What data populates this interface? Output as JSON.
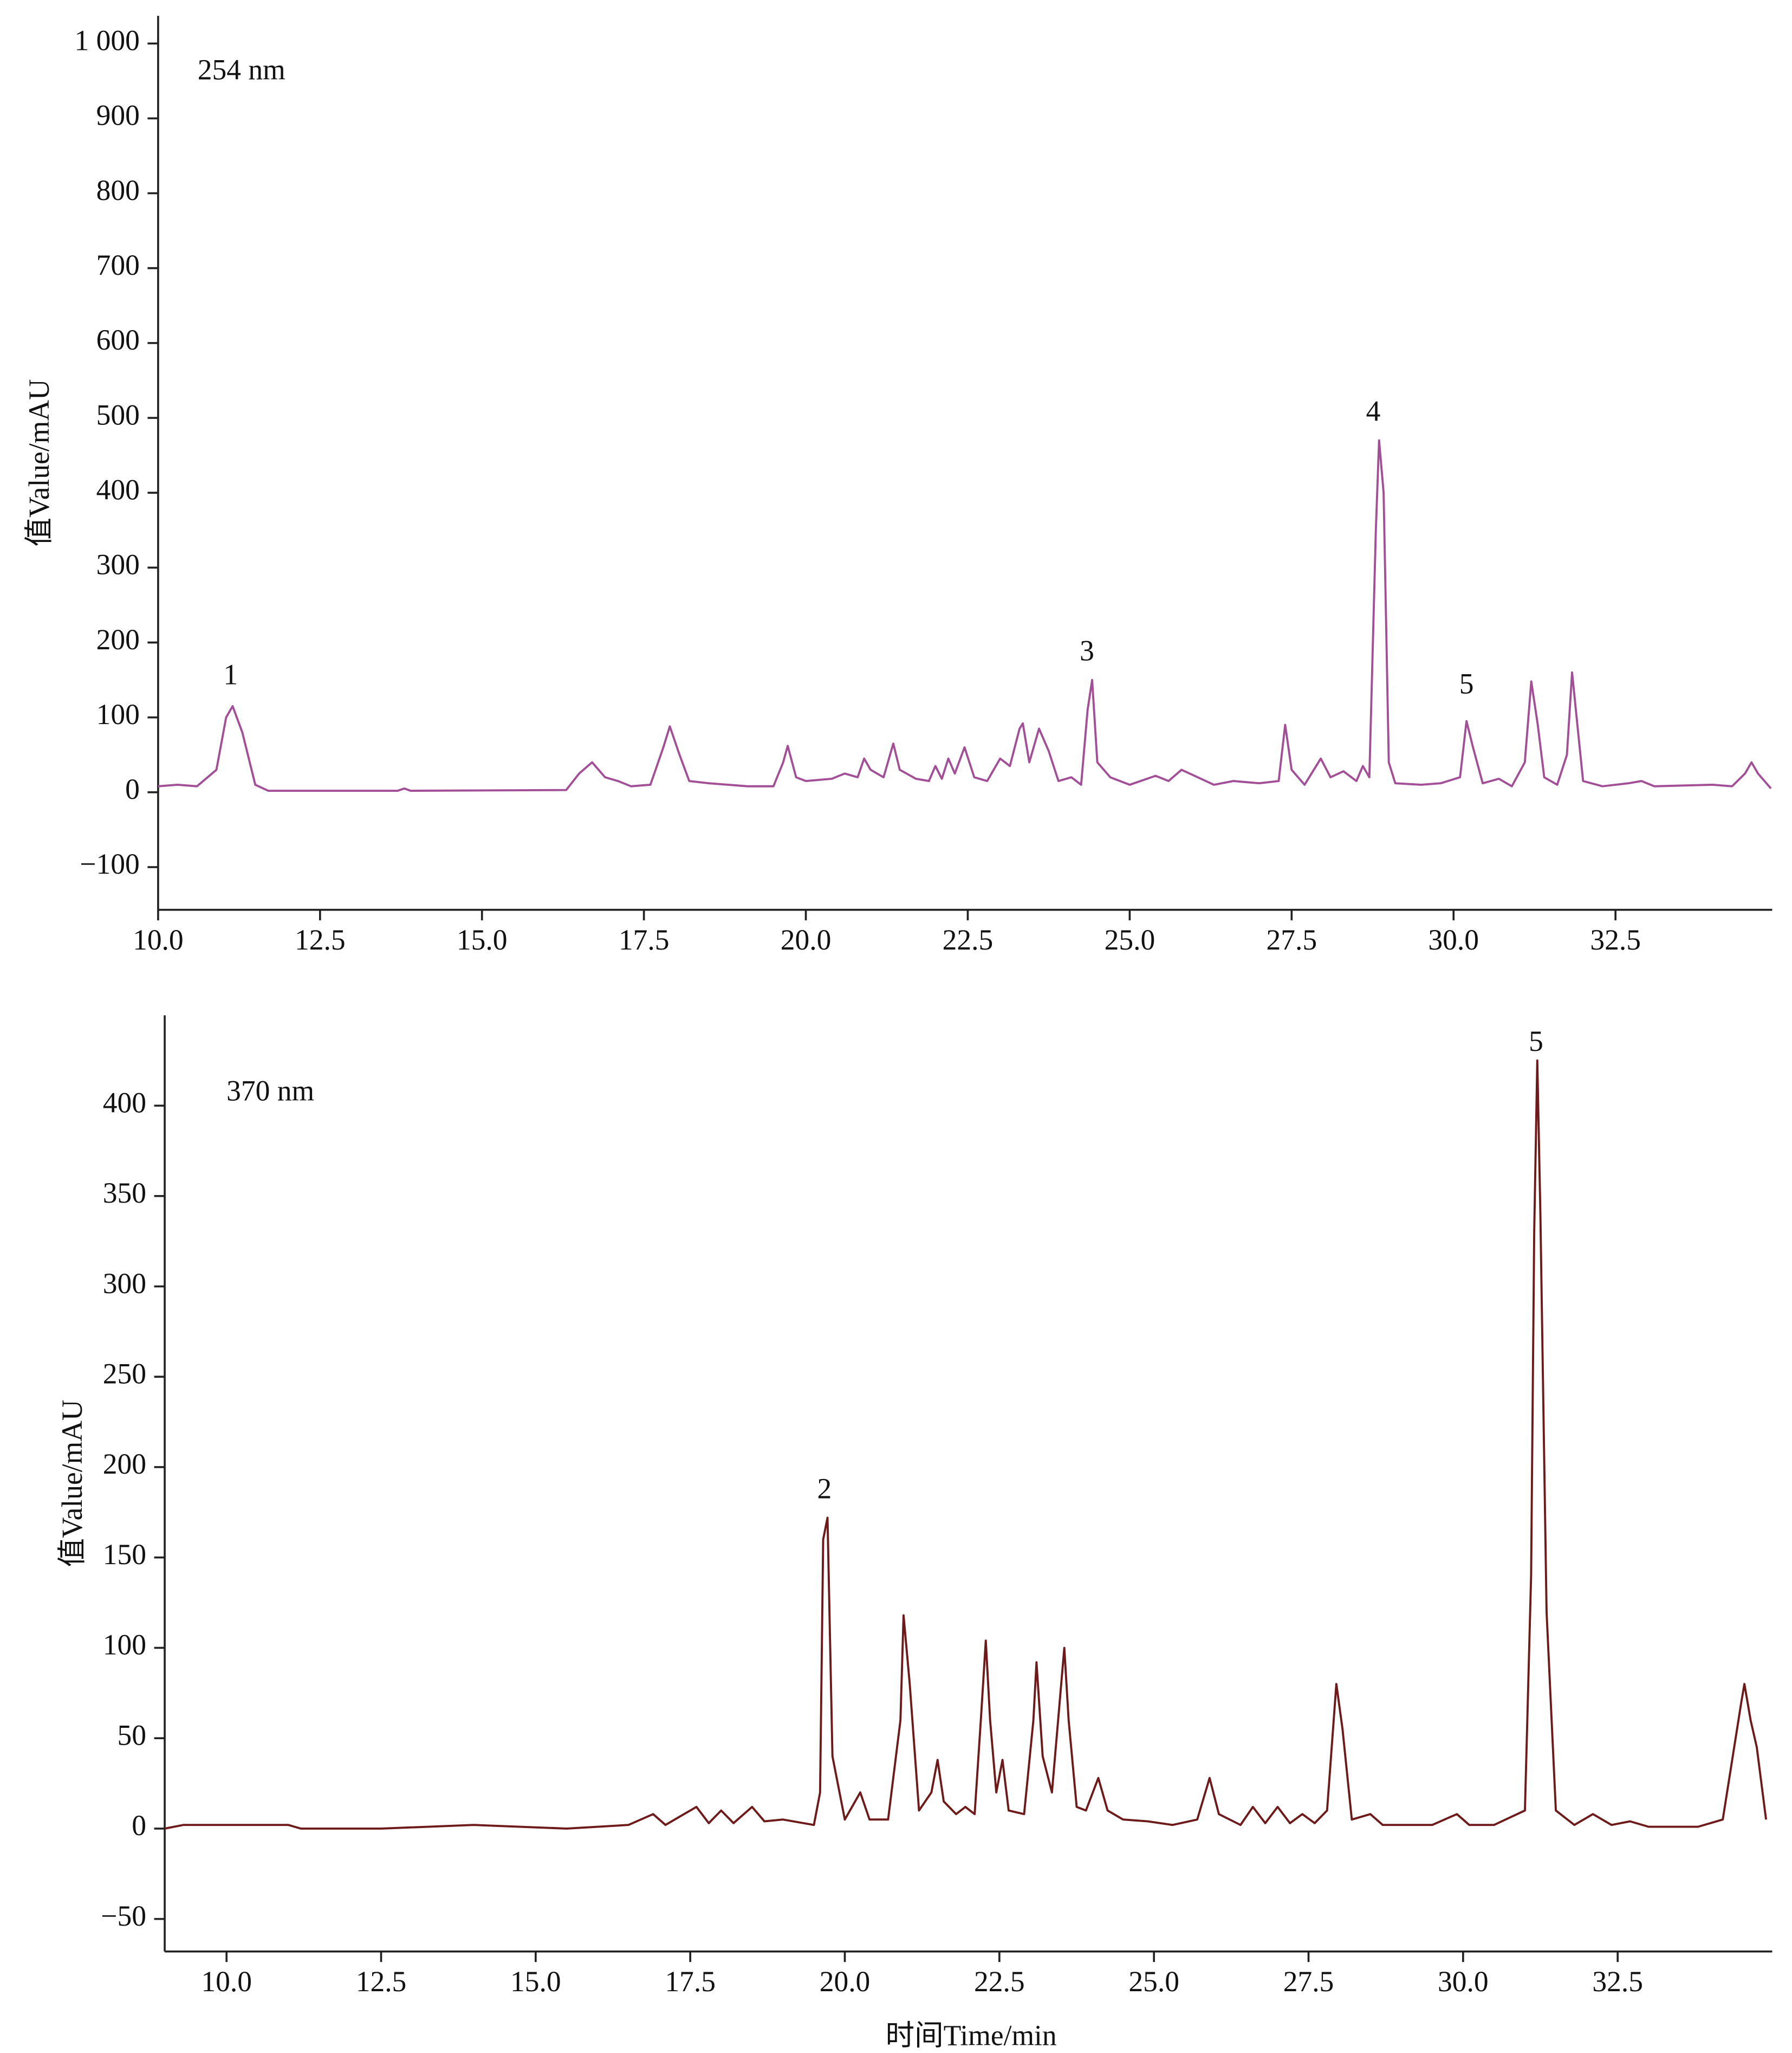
{
  "chart_data": [
    {
      "type": "line",
      "color": "#a24f98",
      "ylabel": "值Value/mAU",
      "panel_label": {
        "text": "254 nm",
        "x": 10.61,
        "y": 961
      },
      "annotations": [
        {
          "text": "1",
          "x": 11.12,
          "y": 153
        },
        {
          "text": "3",
          "x": 24.34,
          "y": 185
        },
        {
          "text": "4",
          "x": 28.76,
          "y": 505
        },
        {
          "text": "5",
          "x": 30.2,
          "y": 141
        }
      ],
      "xlim": [
        10,
        34.92
      ],
      "ylim": [
        -157,
        1037
      ],
      "xticks": [
        {
          "value": 10,
          "label": "10.0"
        },
        12.5,
        {
          "value": 15,
          "label": "15.0"
        },
        17.5,
        {
          "value": 20,
          "label": "20.0"
        },
        22.5,
        {
          "value": 25,
          "label": "25.0"
        },
        27.5,
        {
          "value": 30,
          "label": "30.0"
        },
        32.5
      ],
      "yticks": [
        {
          "value": -100,
          "label": "−100"
        },
        0,
        100,
        200,
        300,
        400,
        500,
        600,
        700,
        800,
        900,
        {
          "value": 1000,
          "label": "1 000"
        }
      ],
      "x": [
        10.0,
        10.3,
        10.6,
        10.9,
        11.05,
        11.15,
        11.3,
        11.5,
        11.7,
        13.7,
        13.8,
        13.9,
        16.3,
        16.5,
        16.7,
        16.9,
        17.1,
        17.3,
        17.6,
        17.8,
        17.9,
        18.05,
        18.2,
        18.5,
        18.8,
        19.1,
        19.5,
        19.65,
        19.72,
        19.85,
        20.0,
        20.4,
        20.6,
        20.8,
        20.9,
        21.0,
        21.2,
        21.35,
        21.45,
        21.7,
        21.9,
        22.0,
        22.1,
        22.2,
        22.3,
        22.45,
        22.6,
        22.8,
        23.0,
        23.15,
        23.3,
        23.35,
        23.45,
        23.6,
        23.75,
        23.9,
        24.1,
        24.25,
        24.35,
        24.42,
        24.5,
        24.7,
        25.0,
        25.4,
        25.6,
        25.8,
        26.0,
        26.3,
        26.6,
        27.0,
        27.3,
        27.4,
        27.5,
        27.7,
        27.95,
        28.1,
        28.3,
        28.5,
        28.6,
        28.7,
        28.8,
        28.85,
        28.92,
        29.0,
        29.1,
        29.5,
        29.8,
        30.1,
        30.2,
        30.3,
        30.45,
        30.7,
        30.9,
        31.1,
        31.2,
        31.3,
        31.4,
        31.6,
        31.75,
        31.83,
        31.9,
        32.0,
        32.3,
        32.7,
        32.9,
        33.1,
        34.0,
        34.3,
        34.5,
        34.6,
        34.7,
        34.9
      ],
      "values": [
        8,
        10,
        8,
        30,
        100,
        115,
        80,
        10,
        2,
        2,
        5,
        2,
        3,
        25,
        40,
        20,
        15,
        8,
        10,
        60,
        88,
        50,
        15,
        12,
        10,
        8,
        8,
        40,
        62,
        20,
        15,
        18,
        25,
        20,
        45,
        30,
        20,
        65,
        30,
        18,
        15,
        35,
        18,
        45,
        25,
        60,
        20,
        15,
        45,
        35,
        85,
        92,
        40,
        85,
        55,
        15,
        20,
        10,
        110,
        150,
        40,
        20,
        10,
        22,
        15,
        30,
        22,
        10,
        15,
        12,
        15,
        90,
        30,
        10,
        45,
        20,
        28,
        15,
        35,
        20,
        350,
        470,
        400,
        40,
        12,
        10,
        12,
        20,
        95,
        60,
        12,
        18,
        8,
        40,
        148,
        90,
        20,
        10,
        50,
        160,
        100,
        15,
        8,
        12,
        15,
        8,
        10,
        8,
        25,
        40,
        25,
        5
      ]
    },
    {
      "type": "line",
      "color": "#6e1a1a",
      "ylabel": "值Value/mAU",
      "xlabel": "时间Time/min",
      "panel_label": {
        "text": "370 nm",
        "x": 10.0,
        "y": 406.5
      },
      "annotations": [
        {
          "text": "2",
          "x": 19.67,
          "y": 186.5
        },
        {
          "text": "5",
          "x": 31.18,
          "y": 434
        }
      ],
      "xlim": [
        9.0,
        35.0
      ],
      "ylim": [
        -68,
        450
      ],
      "xticks": [
        {
          "value": 10,
          "label": "10.0"
        },
        12.5,
        {
          "value": 15,
          "label": "15.0"
        },
        17.5,
        {
          "value": 20,
          "label": "20.0"
        },
        22.5,
        {
          "value": 25,
          "label": "25.0"
        },
        27.5,
        {
          "value": 30,
          "label": "30.0"
        },
        32.5
      ],
      "yticks": [
        {
          "value": -50,
          "label": "−50"
        },
        0,
        50,
        100,
        150,
        200,
        250,
        300,
        350,
        400
      ],
      "x": [
        9.0,
        9.3,
        11.0,
        11.2,
        12.5,
        14.0,
        15.5,
        16.5,
        16.9,
        17.1,
        17.6,
        17.8,
        18.0,
        18.2,
        18.5,
        18.7,
        19.0,
        19.5,
        19.6,
        19.65,
        19.72,
        19.8,
        20.0,
        20.25,
        20.4,
        20.7,
        20.9,
        20.95,
        21.05,
        21.2,
        21.4,
        21.5,
        21.6,
        21.8,
        21.95,
        22.1,
        22.2,
        22.28,
        22.35,
        22.45,
        22.55,
        22.65,
        22.9,
        23.05,
        23.1,
        23.2,
        23.35,
        23.45,
        23.55,
        23.62,
        23.75,
        23.9,
        24.1,
        24.25,
        24.5,
        24.9,
        25.3,
        25.7,
        25.9,
        26.05,
        26.4,
        26.6,
        26.8,
        27.0,
        27.2,
        27.4,
        27.6,
        27.8,
        27.95,
        28.05,
        28.2,
        28.5,
        28.7,
        29.5,
        29.9,
        30.1,
        30.5,
        31.0,
        31.1,
        31.15,
        31.2,
        31.25,
        31.35,
        31.5,
        31.8,
        32.1,
        32.4,
        32.7,
        33.0,
        33.8,
        34.2,
        34.5,
        34.55,
        34.65,
        34.75,
        34.9
      ],
      "values": [
        0,
        2,
        2,
        0,
        0,
        2,
        0,
        2,
        8,
        2,
        12,
        3,
        10,
        3,
        12,
        4,
        5,
        2,
        20,
        160,
        172,
        40,
        5,
        20,
        5,
        5,
        60,
        118,
        80,
        10,
        20,
        38,
        15,
        8,
        12,
        8,
        60,
        104,
        60,
        20,
        38,
        10,
        8,
        60,
        92,
        40,
        20,
        60,
        100,
        60,
        12,
        10,
        28,
        10,
        5,
        4,
        2,
        5,
        28,
        8,
        2,
        12,
        3,
        12,
        3,
        8,
        3,
        10,
        80,
        55,
        5,
        8,
        2,
        2,
        8,
        2,
        2,
        10,
        140,
        330,
        425,
        340,
        120,
        10,
        2,
        8,
        2,
        4,
        1,
        1,
        5,
        70,
        80,
        60,
        45,
        5
      ]
    }
  ]
}
